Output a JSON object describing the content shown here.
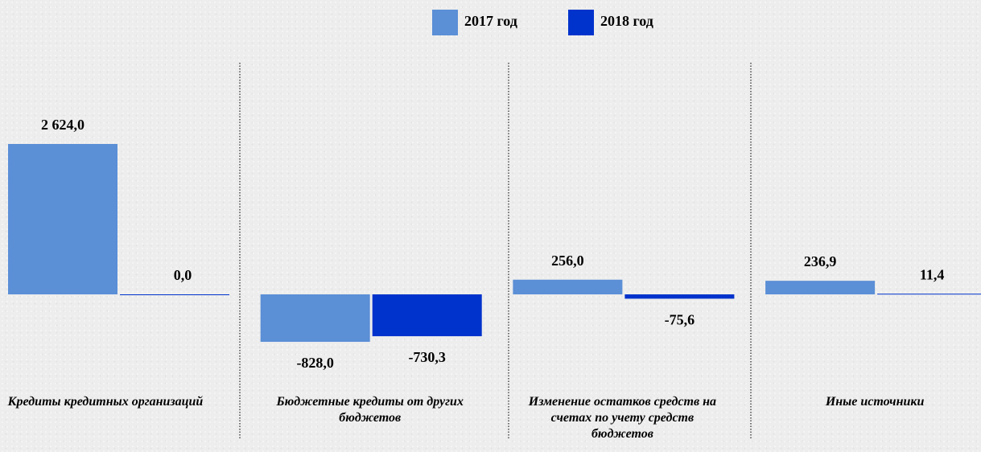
{
  "chart_data": {
    "type": "bar",
    "categories": [
      "Кредиты кредитных организаций",
      "Бюджетные кредиты от других бюджетов",
      "Изменение остатков средств на счетах по учету средств бюджетов",
      "Иные источники"
    ],
    "series": [
      {
        "name": "2017 год",
        "color": "#5b8fd6",
        "values": [
          2624.0,
          -828.0,
          256.0,
          236.9
        ],
        "value_labels": [
          "2 624,0",
          "-828,0",
          "256,0",
          "236,9"
        ]
      },
      {
        "name": "2018 год",
        "color": "#0033cc",
        "values": [
          0.0,
          -730.3,
          -75.6,
          11.4
        ],
        "value_labels": [
          "0,0",
          "-730,3",
          "-75,6",
          "11,4"
        ]
      }
    ]
  }
}
